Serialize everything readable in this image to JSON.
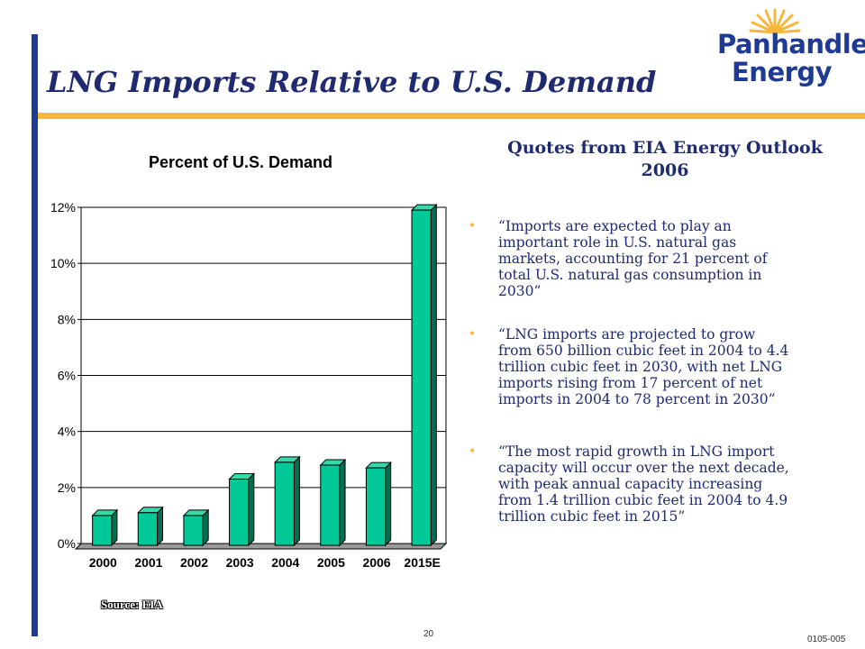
{
  "slide": {
    "title": "LNG Imports Relative to U.S. Demand",
    "page_number": "20",
    "doc_code": "0105-005"
  },
  "logo": {
    "line1": "Panhandle",
    "line2": "Energy",
    "colors": {
      "text": "#1f3a93",
      "rays": "#f6b73c"
    }
  },
  "chart_data": {
    "type": "bar",
    "title": "Percent of U.S. Demand",
    "categories": [
      "2000",
      "2001",
      "2002",
      "2003",
      "2004",
      "2005",
      "2006",
      "2015E"
    ],
    "values": [
      0.01,
      0.011,
      0.01,
      0.023,
      0.029,
      0.028,
      0.027,
      0.119
    ],
    "ylim": [
      0,
      0.12
    ],
    "yticks": [
      {
        "value": 0,
        "label": "0%"
      },
      {
        "value": 0.02,
        "label": "2%"
      },
      {
        "value": 0.04,
        "label": "4%"
      },
      {
        "value": 0.06,
        "label": "6%"
      },
      {
        "value": 0.08,
        "label": "8%"
      },
      {
        "value": 0.1,
        "label": "10%"
      },
      {
        "value": 0.12,
        "label": "12%"
      }
    ],
    "xlabel": "",
    "ylabel": "",
    "grid": true,
    "style": "3d",
    "colors": {
      "bar_front": "#00c896",
      "bar_top": "#33dbab",
      "bar_side": "#006e50",
      "floor": "#999999"
    },
    "source": "Source: EIA"
  },
  "quotes": {
    "heading_line1": "Quotes from EIA Energy Outlook",
    "heading_line2": "2006",
    "bullet_color": "#f6b73c",
    "items": [
      {
        "lines": [
          "“Imports are expected to play an",
          "important role in U.S. natural gas",
          "markets, accounting for 21 percent of",
          "total U.S. natural gas consumption in",
          "2030”"
        ]
      },
      {
        "lines": [
          "“LNG imports are projected to grow",
          "from 650 billion cubic feet in 2004 to 4.4",
          "trillion cubic feet in 2030, with net LNG",
          "imports rising from 17 percent of net",
          "imports in 2004 to 78 percent in 2030”"
        ]
      },
      {
        "lines": [
          "“The most rapid growth in LNG import",
          "capacity will occur over the next decade,",
          "with peak annual capacity increasing",
          "from 1.4 trillion cubic feet in 2004 to 4.9",
          "trillion cubic feet in 2015”"
        ]
      }
    ]
  }
}
